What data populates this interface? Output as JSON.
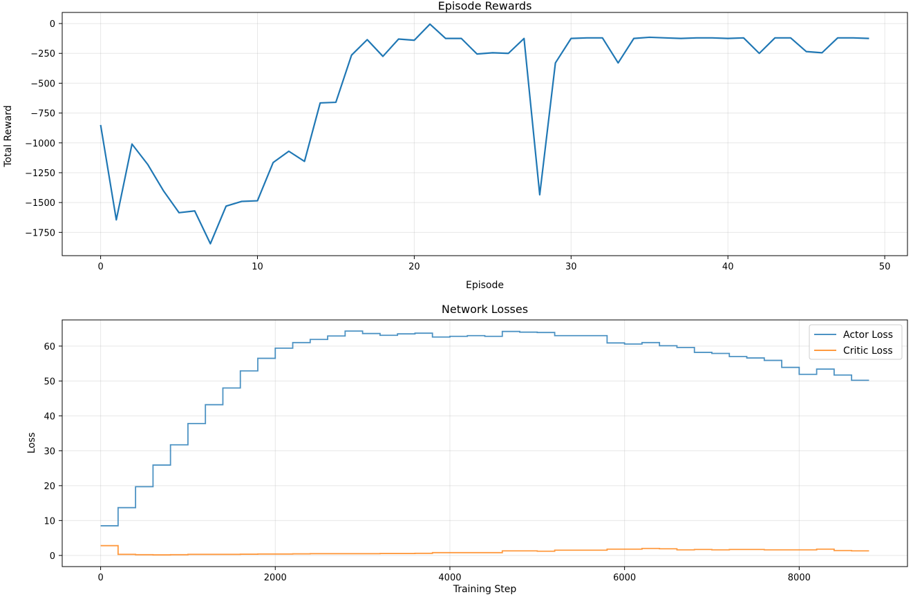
{
  "chart_data": [
    {
      "type": "line",
      "title": "Episode Rewards",
      "xlabel": "Episode",
      "ylabel": "Total Reward",
      "xlim": [
        -2.45,
        51.45
      ],
      "ylim": [
        -1945,
        93
      ],
      "x_ticks": [
        0,
        10,
        20,
        30,
        40,
        50
      ],
      "x_tick_labels": [
        "0",
        "10",
        "20",
        "30",
        "40",
        "50"
      ],
      "y_ticks": [
        0,
        -250,
        -500,
        -750,
        -1000,
        -1250,
        -1500,
        -1750
      ],
      "y_tick_labels": [
        "0",
        "−250",
        "−500",
        "−750",
        "−1000",
        "−1250",
        "−1500",
        "−1750"
      ],
      "grid": true,
      "color": "#1f77b4",
      "series": [
        {
          "x": [
            0,
            1,
            2,
            3,
            4,
            5,
            6,
            7,
            8,
            9,
            10,
            11,
            12,
            13,
            14,
            15,
            16,
            17,
            18,
            19,
            20,
            21,
            22,
            23,
            24,
            25,
            26,
            27,
            28,
            29,
            30,
            31,
            32,
            33,
            34,
            35,
            36,
            37,
            38,
            39,
            40,
            41,
            42,
            43,
            44,
            45,
            46,
            47,
            48,
            49
          ],
          "values": [
            -850,
            -1645,
            -1010,
            -1180,
            -1400,
            -1585,
            -1570,
            -1845,
            -1530,
            -1490,
            -1485,
            -1165,
            -1070,
            -1155,
            -665,
            -660,
            -265,
            -135,
            -275,
            -130,
            -140,
            -5,
            -125,
            -125,
            -255,
            -245,
            -250,
            -125,
            -1435,
            -330,
            -125,
            -120,
            -120,
            -330,
            -125,
            -115,
            -120,
            -125,
            -120,
            -120,
            -125,
            -120,
            -250,
            -120,
            -120,
            -235,
            -245,
            -120,
            -120,
            -125
          ]
        }
      ]
    },
    {
      "type": "line",
      "title": "Network Losses",
      "xlabel": "Training Step",
      "ylabel": "Loss",
      "xlim": [
        -440,
        9240
      ],
      "ylim": [
        -3.2,
        67.5
      ],
      "x_ticks": [
        0,
        2000,
        4000,
        6000,
        8000
      ],
      "x_tick_labels": [
        "0",
        "2000",
        "4000",
        "6000",
        "8000"
      ],
      "y_ticks": [
        0,
        10,
        20,
        30,
        40,
        50,
        60
      ],
      "y_tick_labels": [
        "0",
        "10",
        "20",
        "30",
        "40",
        "50",
        "60"
      ],
      "grid": true,
      "legend_position": "top-right",
      "step_x": [
        0,
        200,
        400,
        600,
        800,
        1000,
        1200,
        1400,
        1600,
        1800,
        2000,
        2200,
        2400,
        2600,
        2800,
        3000,
        3200,
        3400,
        3600,
        3800,
        4000,
        4200,
        4400,
        4600,
        4800,
        5000,
        5200,
        5400,
        5600,
        5800,
        6000,
        6200,
        6400,
        6600,
        6800,
        7000,
        7200,
        7400,
        7600,
        7800,
        8000,
        8200,
        8400,
        8600,
        8800
      ],
      "series": [
        {
          "name": "Actor Loss",
          "color": "#1f77b4",
          "values": [
            8.5,
            13.7,
            19.7,
            25.9,
            31.7,
            37.8,
            43.2,
            48.0,
            52.9,
            56.5,
            59.4,
            61.0,
            61.9,
            62.9,
            64.3,
            63.6,
            63.1,
            63.5,
            63.7,
            62.6,
            62.8,
            63.0,
            62.8,
            64.2,
            64.0,
            63.9,
            63.0,
            63.0,
            63.0,
            60.9,
            60.6,
            61.0,
            60.1,
            59.6,
            58.2,
            57.9,
            57.0,
            56.6,
            55.9,
            53.9,
            51.9,
            53.4,
            51.7,
            50.2,
            50.2
          ]
        },
        {
          "name": "Critic Loss",
          "color": "#ff7f0e",
          "values": [
            2.8,
            0.3,
            0.2,
            0.15,
            0.2,
            0.3,
            0.3,
            0.3,
            0.35,
            0.4,
            0.4,
            0.45,
            0.5,
            0.5,
            0.5,
            0.5,
            0.55,
            0.55,
            0.6,
            0.8,
            0.8,
            0.8,
            0.8,
            1.3,
            1.3,
            1.2,
            1.5,
            1.5,
            1.5,
            1.8,
            1.8,
            2.0,
            1.9,
            1.6,
            1.7,
            1.6,
            1.7,
            1.7,
            1.6,
            1.6,
            1.6,
            1.8,
            1.4,
            1.3,
            1.3
          ]
        }
      ]
    }
  ]
}
